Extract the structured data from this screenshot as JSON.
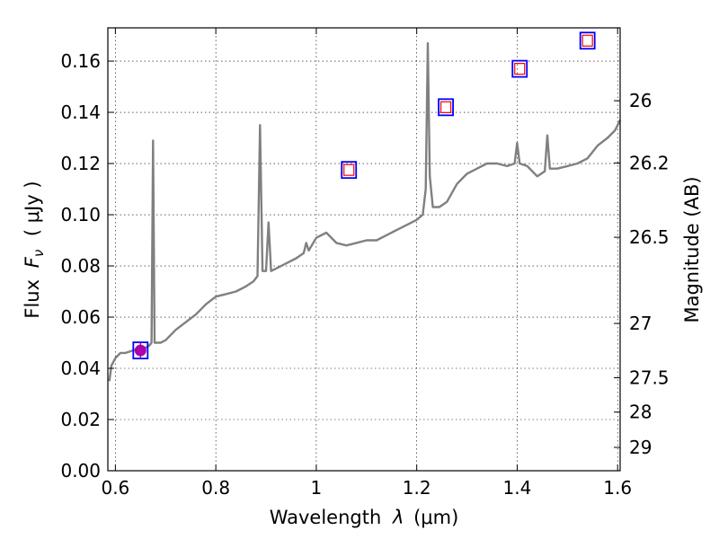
{
  "chart_data": {
    "type": "line",
    "xlabel_text": "Wavelength",
    "xlabel_symbol": "λ",
    "xlabel_unit": "(μm)",
    "ylabel_text": "Flux",
    "ylabel_symbol": "F",
    "ylabel_subscript": "ν",
    "ylabel_unit": "( μJy )",
    "y2label": "Magnitude (AB)",
    "xlim": [
      0.585,
      1.605
    ],
    "ylim": [
      0.0,
      0.173
    ],
    "x_ticks": [
      0.6,
      0.8,
      1.0,
      1.2,
      1.4,
      1.6
    ],
    "x_tick_labels": [
      "0.6",
      "0.8",
      "1",
      "1.2",
      "1.4",
      "1.6"
    ],
    "y_ticks": [
      0.0,
      0.02,
      0.04,
      0.06,
      0.08,
      0.1,
      0.12,
      0.14,
      0.16
    ],
    "y_tick_labels": [
      "0.00",
      "0.02",
      "0.04",
      "0.06",
      "0.08",
      "0.10",
      "0.12",
      "0.14",
      "0.16"
    ],
    "y2_ticks": [
      {
        "mag": 26,
        "label": "26"
      },
      {
        "mag": 26.2,
        "label": "26.2"
      },
      {
        "mag": 26.5,
        "label": "26.5"
      },
      {
        "mag": 27,
        "label": "27"
      },
      {
        "mag": 27.5,
        "label": "27.5"
      },
      {
        "mag": 28,
        "label": "28"
      },
      {
        "mag": 29,
        "label": "29"
      }
    ],
    "grid": true,
    "series": [
      {
        "kind": "spectrum",
        "color": "#808080",
        "points": [
          [
            0.588,
            0.035
          ],
          [
            0.592,
            0.041
          ],
          [
            0.6,
            0.044
          ],
          [
            0.61,
            0.046
          ],
          [
            0.62,
            0.046
          ],
          [
            0.635,
            0.047
          ],
          [
            0.65,
            0.048
          ],
          [
            0.66,
            0.048
          ],
          [
            0.668,
            0.049
          ],
          [
            0.672,
            0.05
          ],
          [
            0.675,
            0.129
          ],
          [
            0.678,
            0.05
          ],
          [
            0.69,
            0.05
          ],
          [
            0.7,
            0.051
          ],
          [
            0.72,
            0.055
          ],
          [
            0.74,
            0.058
          ],
          [
            0.76,
            0.061
          ],
          [
            0.78,
            0.065
          ],
          [
            0.8,
            0.068
          ],
          [
            0.82,
            0.069
          ],
          [
            0.84,
            0.07
          ],
          [
            0.86,
            0.072
          ],
          [
            0.875,
            0.074
          ],
          [
            0.883,
            0.076
          ],
          [
            0.888,
            0.135
          ],
          [
            0.893,
            0.078
          ],
          [
            0.9,
            0.078
          ],
          [
            0.905,
            0.097
          ],
          [
            0.91,
            0.078
          ],
          [
            0.92,
            0.079
          ],
          [
            0.94,
            0.081
          ],
          [
            0.96,
            0.083
          ],
          [
            0.975,
            0.085
          ],
          [
            0.98,
            0.089
          ],
          [
            0.985,
            0.086
          ],
          [
            1.0,
            0.091
          ],
          [
            1.02,
            0.093
          ],
          [
            1.04,
            0.089
          ],
          [
            1.06,
            0.088
          ],
          [
            1.08,
            0.089
          ],
          [
            1.1,
            0.09
          ],
          [
            1.12,
            0.09
          ],
          [
            1.14,
            0.092
          ],
          [
            1.16,
            0.094
          ],
          [
            1.18,
            0.096
          ],
          [
            1.2,
            0.098
          ],
          [
            1.212,
            0.1
          ],
          [
            1.218,
            0.11
          ],
          [
            1.222,
            0.167
          ],
          [
            1.226,
            0.115
          ],
          [
            1.232,
            0.103
          ],
          [
            1.245,
            0.103
          ],
          [
            1.26,
            0.105
          ],
          [
            1.28,
            0.112
          ],
          [
            1.3,
            0.116
          ],
          [
            1.32,
            0.118
          ],
          [
            1.34,
            0.12
          ],
          [
            1.36,
            0.12
          ],
          [
            1.38,
            0.119
          ],
          [
            1.395,
            0.12
          ],
          [
            1.4,
            0.128
          ],
          [
            1.405,
            0.12
          ],
          [
            1.42,
            0.119
          ],
          [
            1.44,
            0.115
          ],
          [
            1.455,
            0.117
          ],
          [
            1.46,
            0.131
          ],
          [
            1.465,
            0.118
          ],
          [
            1.48,
            0.118
          ],
          [
            1.5,
            0.119
          ],
          [
            1.52,
            0.12
          ],
          [
            1.54,
            0.122
          ],
          [
            1.56,
            0.127
          ],
          [
            1.58,
            0.13
          ],
          [
            1.595,
            0.133
          ],
          [
            1.605,
            0.137
          ]
        ]
      },
      {
        "kind": "photometry_box",
        "color": "#0000ff",
        "points": [
          [
            0.65,
            0.047
          ],
          [
            1.065,
            0.1175
          ],
          [
            1.258,
            0.142
          ],
          [
            1.405,
            0.157
          ],
          [
            1.54,
            0.168
          ]
        ]
      },
      {
        "kind": "model_box",
        "color": "#ff0000",
        "points": [
          [
            1.065,
            0.1175
          ],
          [
            1.258,
            0.142
          ],
          [
            1.405,
            0.157
          ],
          [
            1.54,
            0.168
          ]
        ]
      },
      {
        "kind": "observed_point",
        "color": "#aa00aa",
        "points": [
          [
            0.65,
            0.047
          ]
        ],
        "yerr": [
          0.003
        ]
      }
    ]
  }
}
